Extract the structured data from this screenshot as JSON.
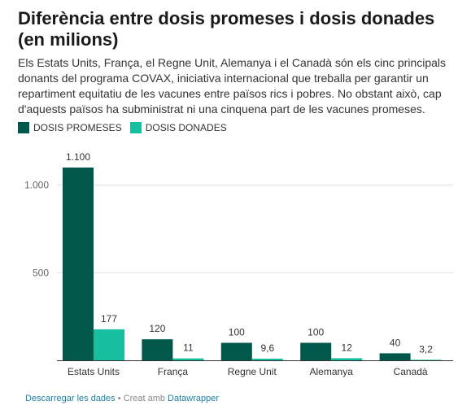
{
  "title": "Diferència entre dosis promeses i dosis donades (en milions)",
  "description": "Els Estats Units, França, el Regne Unit, Alemanya i el Canadà són els cinc principals donants del programa COVAX, iniciativa internacional que treballa per garantir un repartiment equitatiu de les vacunes entre països rics i pobres. No obstant això, cap d'aquests països ha subministrat ni una cinquena part de les vacunes promeses.",
  "footer": {
    "download_label": "Descarregar les dades",
    "separator": " • Creat amb ",
    "brand_label": "Datawrapper"
  },
  "colors": {
    "promised": "#00584a",
    "donated": "#16bfa0"
  },
  "chart_data": {
    "type": "bar",
    "categories": [
      "Estats Units",
      "França",
      "Regne Unit",
      "Alemanya",
      "Canadà"
    ],
    "series": [
      {
        "name": "DOSIS PROMESES",
        "values": [
          1100,
          120,
          100,
          100,
          40
        ],
        "labels": [
          "1.100",
          "120",
          "100",
          "100",
          "40"
        ]
      },
      {
        "name": "DOSIS DONADES",
        "values": [
          177,
          11,
          9.6,
          12,
          3.2
        ],
        "labels": [
          "177",
          "11",
          "9,6",
          "12",
          "3,2"
        ]
      }
    ],
    "yticks": [
      {
        "value": 500,
        "label": "500"
      },
      {
        "value": 1000,
        "label": "1.000"
      }
    ],
    "ylim": [
      0,
      1100
    ],
    "grid": true,
    "legend_position": "top-left"
  }
}
